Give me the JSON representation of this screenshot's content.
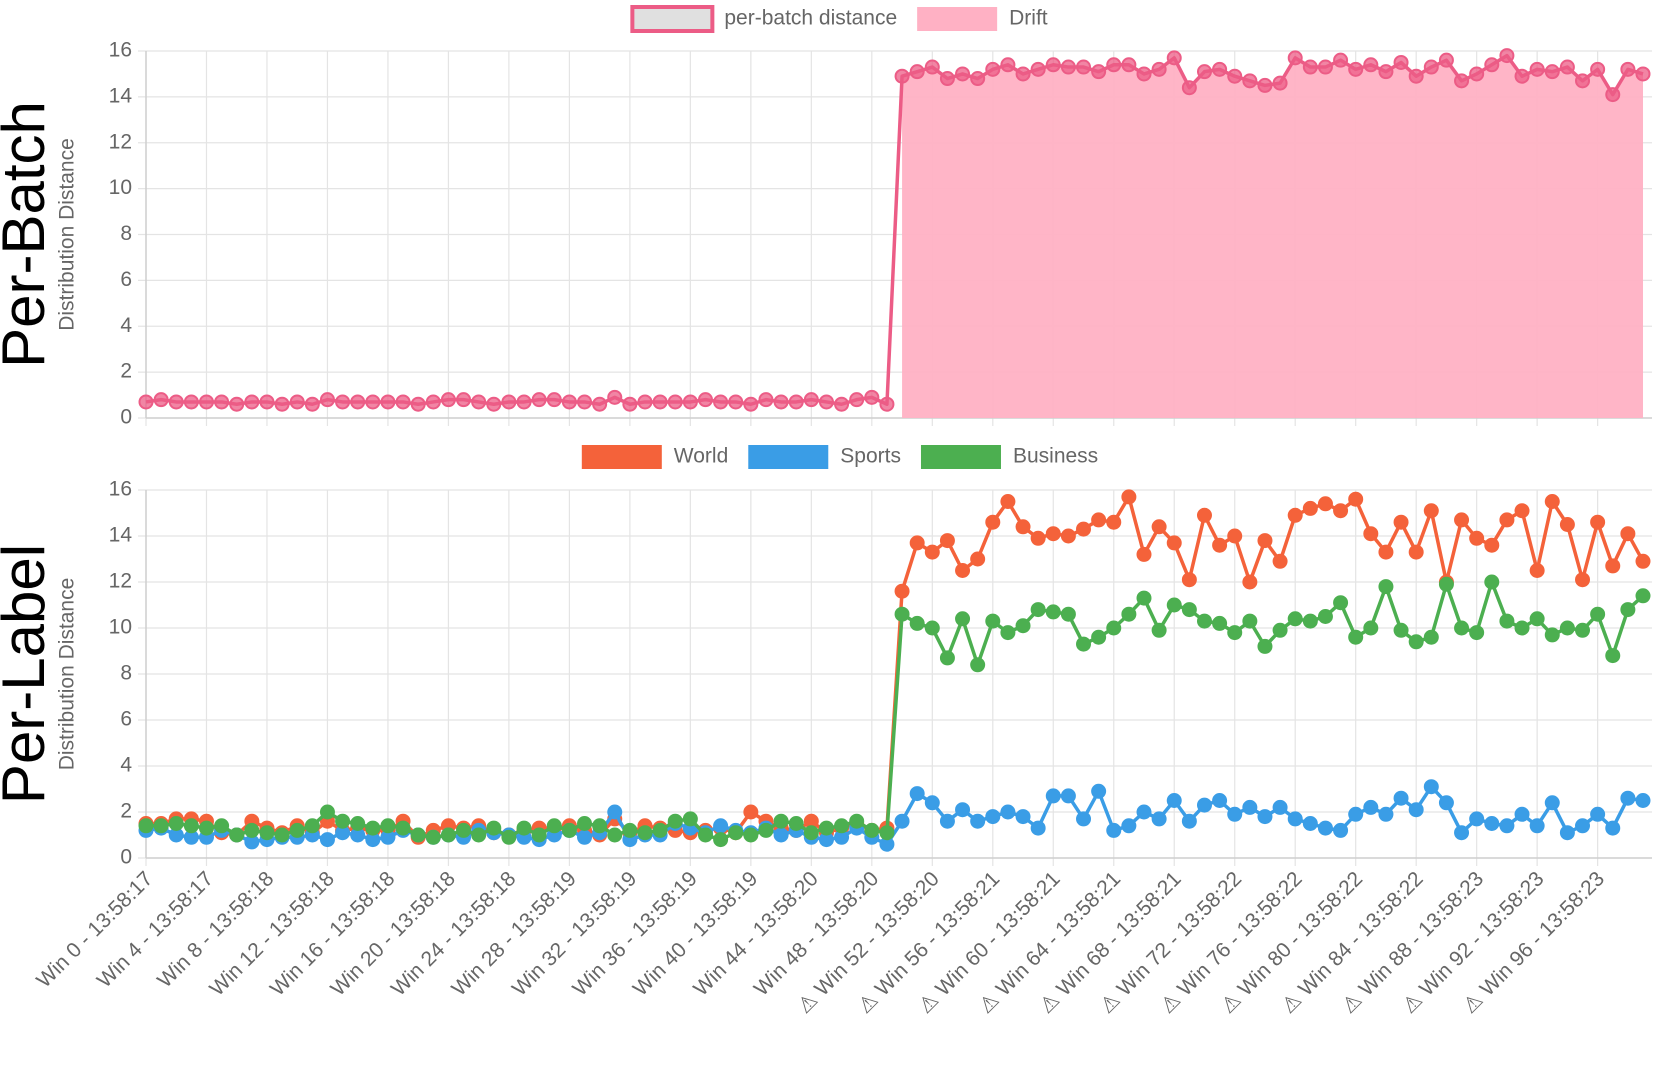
{
  "chart_data": [
    {
      "type": "line",
      "title": "Per-Batch",
      "ylabel": "Distribution Distance",
      "ylim": [
        0,
        16
      ],
      "yticks": [
        0,
        2,
        4,
        6,
        8,
        10,
        12,
        14,
        16
      ],
      "grid": true,
      "series": [
        {
          "name": "per-batch distance",
          "color": "#ec5c86",
          "values": [
            0.7,
            0.8,
            0.7,
            0.7,
            0.7,
            0.7,
            0.6,
            0.7,
            0.7,
            0.6,
            0.7,
            0.6,
            0.8,
            0.7,
            0.7,
            0.7,
            0.7,
            0.7,
            0.6,
            0.7,
            0.8,
            0.8,
            0.7,
            0.6,
            0.7,
            0.7,
            0.8,
            0.8,
            0.7,
            0.7,
            0.6,
            0.9,
            0.6,
            0.7,
            0.7,
            0.7,
            0.7,
            0.8,
            0.7,
            0.7,
            0.6,
            0.8,
            0.7,
            0.7,
            0.8,
            0.7,
            0.6,
            0.8,
            0.9,
            0.6,
            14.9,
            15.1,
            15.3,
            14.8,
            15.0,
            14.8,
            15.2,
            15.4,
            15.0,
            15.2,
            15.4,
            15.3,
            15.3,
            15.1,
            15.4,
            15.4,
            15.0,
            15.2,
            15.7,
            14.4,
            15.1,
            15.2,
            14.9,
            14.7,
            14.5,
            14.6,
            15.7,
            15.3,
            15.3,
            15.6,
            15.2,
            15.4,
            15.1,
            15.5,
            14.9,
            15.3,
            15.6,
            14.7,
            15.0,
            15.4,
            15.8,
            14.9,
            15.2,
            15.1,
            15.3,
            14.7,
            15.2,
            14.1,
            15.2,
            15.0
          ]
        },
        {
          "name": "Drift",
          "color": "#ffb1c4",
          "fill": true,
          "values": [
            null,
            null,
            null,
            null,
            null,
            null,
            null,
            null,
            null,
            null,
            null,
            null,
            null,
            null,
            null,
            null,
            null,
            null,
            null,
            null,
            null,
            null,
            null,
            null,
            null,
            null,
            null,
            null,
            null,
            null,
            null,
            null,
            null,
            null,
            null,
            null,
            null,
            null,
            null,
            null,
            null,
            null,
            null,
            null,
            null,
            null,
            null,
            null,
            null,
            null,
            14.9,
            15.1,
            15.3,
            14.8,
            15.0,
            14.8,
            15.2,
            15.4,
            15.0,
            15.2,
            15.4,
            15.3,
            15.3,
            15.1,
            15.4,
            15.4,
            15.0,
            15.2,
            15.7,
            14.4,
            15.1,
            15.2,
            14.9,
            14.7,
            14.5,
            14.6,
            15.7,
            15.3,
            15.3,
            15.6,
            15.2,
            15.4,
            15.1,
            15.5,
            14.9,
            15.3,
            15.6,
            14.7,
            15.0,
            15.4,
            15.8,
            14.9,
            15.2,
            15.1,
            15.3,
            14.7,
            15.2,
            14.1,
            15.2,
            15.0
          ]
        }
      ]
    },
    {
      "type": "line",
      "title": "Per-Label",
      "ylabel": "Distribution Distance",
      "ylim": [
        0,
        16
      ],
      "yticks": [
        0,
        2,
        4,
        6,
        8,
        10,
        12,
        14,
        16
      ],
      "grid": true,
      "categories": [
        "Win 0 - 13:58:17",
        null,
        null,
        null,
        "Win 4 - 13:58:17",
        null,
        null,
        null,
        "Win 8 - 13:58:18",
        null,
        null,
        null,
        "Win 12 - 13:58:18",
        null,
        null,
        null,
        "Win 16 - 13:58:18",
        null,
        null,
        null,
        "Win 20 - 13:58:18",
        null,
        null,
        null,
        "Win 24 - 13:58:18",
        null,
        null,
        null,
        "Win 28 - 13:58:19",
        null,
        null,
        null,
        "Win 32 - 13:58:19",
        null,
        null,
        null,
        "Win 36 - 13:58:19",
        null,
        null,
        null,
        "Win 40 - 13:58:19",
        null,
        null,
        null,
        "Win 44 - 13:58:20",
        null,
        null,
        null,
        "Win 48 - 13:58:20",
        null,
        null,
        null,
        "⚠ Win 52 - 13:58:20",
        null,
        null,
        null,
        "⚠ Win 56 - 13:58:21",
        null,
        null,
        null,
        "⚠ Win 60 - 13:58:21",
        null,
        null,
        null,
        "⚠ Win 64 - 13:58:21",
        null,
        null,
        null,
        "⚠ Win 68 - 13:58:21",
        null,
        null,
        null,
        "⚠ Win 72 - 13:58:22",
        null,
        null,
        null,
        "⚠ Win 76 - 13:58:22",
        null,
        null,
        null,
        "⚠ Win 80 - 13:58:22",
        null,
        null,
        null,
        "⚠ Win 84 - 13:58:22",
        null,
        null,
        null,
        "⚠ Win 88 - 13:58:23",
        null,
        null,
        null,
        "⚠ Win 92 - 13:58:23",
        null,
        null,
        null,
        "⚠ Win 96 - 13:58:23",
        null,
        null,
        null
      ],
      "series": [
        {
          "name": "World",
          "color": "#f4623a",
          "values": [
            1.5,
            1.5,
            1.7,
            1.7,
            1.6,
            1.1,
            1.0,
            1.6,
            1.3,
            1.1,
            1.4,
            1.1,
            1.6,
            1.2,
            1.3,
            1.2,
            1.2,
            1.6,
            0.9,
            1.2,
            1.4,
            1.3,
            1.4,
            1.1,
            1.0,
            1.2,
            1.3,
            1.3,
            1.4,
            1.2,
            1.0,
            1.7,
            1.1,
            1.4,
            1.3,
            1.2,
            1.1,
            1.2,
            1.3,
            1.1,
            2.0,
            1.6,
            1.3,
            1.2,
            1.6,
            1.1,
            1.3,
            1.5,
            1.2,
            1.3,
            11.6,
            13.7,
            13.3,
            13.8,
            12.5,
            13.0,
            14.6,
            15.5,
            14.4,
            13.9,
            14.1,
            14.0,
            14.3,
            14.7,
            14.6,
            15.7,
            13.2,
            14.4,
            13.7,
            12.1,
            14.9,
            13.6,
            14.0,
            12.0,
            13.8,
            12.9,
            14.9,
            15.2,
            15.4,
            15.1,
            15.6,
            14.1,
            13.3,
            14.6,
            13.3,
            15.1,
            12.0,
            14.7,
            13.9,
            13.6,
            14.7,
            15.1,
            12.5,
            15.5,
            14.5,
            12.1,
            14.6,
            12.7,
            14.1,
            12.9
          ]
        },
        {
          "name": "Sports",
          "color": "#3a9de6",
          "values": [
            1.2,
            1.3,
            1.0,
            0.9,
            0.9,
            1.2,
            1.0,
            0.7,
            0.8,
            0.9,
            0.9,
            1.0,
            0.8,
            1.1,
            1.0,
            0.8,
            0.9,
            1.2,
            1.0,
            0.9,
            1.0,
            0.9,
            1.2,
            1.1,
            1.0,
            0.9,
            0.8,
            1.0,
            1.2,
            0.9,
            1.1,
            2.0,
            0.8,
            1.0,
            1.0,
            1.5,
            1.3,
            1.1,
            1.4,
            1.2,
            1.1,
            1.3,
            1.0,
            1.2,
            0.9,
            0.8,
            0.9,
            1.3,
            0.9,
            0.6,
            1.6,
            2.8,
            2.4,
            1.6,
            2.1,
            1.6,
            1.8,
            2.0,
            1.8,
            1.3,
            2.7,
            2.7,
            1.7,
            2.9,
            1.2,
            1.4,
            2.0,
            1.7,
            2.5,
            1.6,
            2.3,
            2.5,
            1.9,
            2.2,
            1.8,
            2.2,
            1.7,
            1.5,
            1.3,
            1.2,
            1.9,
            2.2,
            1.9,
            2.6,
            2.1,
            3.1,
            2.4,
            1.1,
            1.7,
            1.5,
            1.4,
            1.9,
            1.4,
            2.4,
            1.1,
            1.4,
            1.9,
            1.3,
            2.6,
            2.5
          ]
        },
        {
          "name": "Business",
          "color": "#4caf50",
          "values": [
            1.4,
            1.4,
            1.5,
            1.4,
            1.3,
            1.4,
            1.0,
            1.2,
            1.1,
            1.0,
            1.2,
            1.4,
            2.0,
            1.6,
            1.5,
            1.3,
            1.4,
            1.3,
            1.0,
            0.9,
            1.0,
            1.2,
            1.0,
            1.3,
            0.9,
            1.3,
            1.0,
            1.4,
            1.2,
            1.5,
            1.4,
            1.0,
            1.2,
            1.1,
            1.2,
            1.6,
            1.7,
            1.0,
            0.8,
            1.1,
            1.0,
            1.2,
            1.6,
            1.5,
            1.1,
            1.3,
            1.4,
            1.6,
            1.2,
            1.1,
            10.6,
            10.2,
            10.0,
            8.7,
            10.4,
            8.4,
            10.3,
            9.8,
            10.1,
            10.8,
            10.7,
            10.6,
            9.3,
            9.6,
            10.0,
            10.6,
            11.3,
            9.9,
            11.0,
            10.8,
            10.3,
            10.2,
            9.8,
            10.3,
            9.2,
            9.9,
            10.4,
            10.3,
            10.5,
            11.1,
            9.6,
            10.0,
            11.8,
            9.9,
            9.4,
            9.6,
            11.9,
            10.0,
            9.8,
            12.0,
            10.3,
            10.0,
            10.4,
            9.7,
            10.0,
            9.9,
            10.6,
            8.8,
            10.8,
            11.4
          ]
        }
      ]
    }
  ]
}
